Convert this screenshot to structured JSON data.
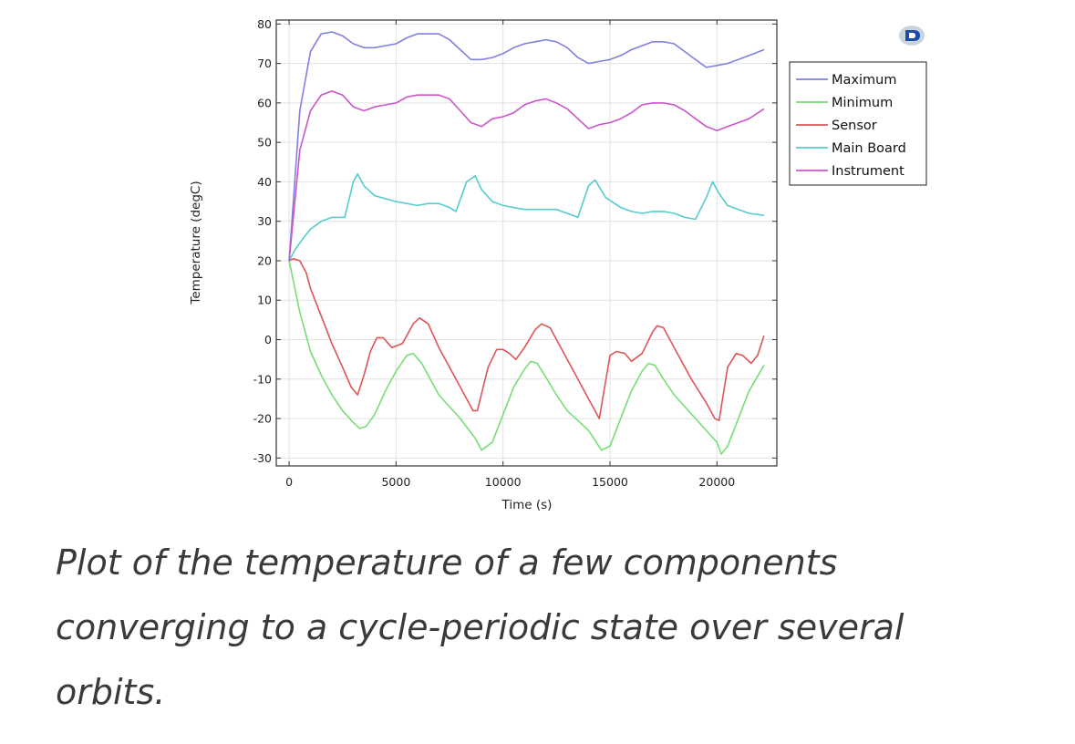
{
  "chart_data": {
    "type": "line",
    "xlabel": "Time (s)",
    "ylabel": "Temperature (degC)",
    "xlim": [
      -600,
      22800
    ],
    "ylim": [
      -32,
      81
    ],
    "xticks": [
      0,
      5000,
      10000,
      15000,
      20000
    ],
    "xtick_labels": [
      "0",
      "5000",
      "10000",
      "15000",
      "20000"
    ],
    "yticks": [
      -30,
      -20,
      -10,
      0,
      10,
      20,
      30,
      40,
      50,
      60,
      70,
      80
    ],
    "ytick_labels": [
      "-30",
      "-20",
      "-10",
      "0",
      "10",
      "20",
      "30",
      "40",
      "50",
      "60",
      "70",
      "80"
    ],
    "grid": true,
    "legend_position": "outside-right",
    "series": [
      {
        "name": "Maximum",
        "color": "#8080dd",
        "x": [
          0,
          500,
          1000,
          1500,
          2000,
          2500,
          3000,
          3500,
          4000,
          4500,
          5000,
          5500,
          6000,
          6500,
          7000,
          7500,
          8000,
          8500,
          9000,
          9500,
          10000,
          10500,
          11000,
          11500,
          12000,
          12500,
          13000,
          13500,
          14000,
          14500,
          15000,
          15500,
          16000,
          16500,
          17000,
          17500,
          18000,
          18500,
          19000,
          19500,
          20000,
          20500,
          21000,
          21500,
          22200
        ],
        "values": [
          20,
          58,
          73,
          77.5,
          78,
          77,
          75,
          74,
          74,
          74.5,
          75,
          76.5,
          77.5,
          77.5,
          77.5,
          76,
          73.5,
          71,
          71,
          71.5,
          72.5,
          74,
          75,
          75.5,
          76,
          75.5,
          74,
          71.5,
          70,
          70.5,
          71,
          72,
          73.5,
          74.5,
          75.5,
          75.5,
          75,
          73,
          71,
          69,
          69.5,
          70,
          71,
          72,
          73.5
        ]
      },
      {
        "name": "Minimum",
        "color": "#77dd77",
        "x": [
          0,
          500,
          1000,
          1500,
          2000,
          2500,
          3000,
          3300,
          3600,
          4000,
          4500,
          5000,
          5500,
          5800,
          6200,
          7000,
          8000,
          8700,
          9000,
          9500,
          10000,
          10500,
          11000,
          11300,
          11600,
          12000,
          12500,
          13000,
          14000,
          14600,
          15000,
          15500,
          16000,
          16500,
          16800,
          17100,
          17500,
          18000,
          19000,
          20000,
          20200,
          20500,
          21000,
          21500,
          22200
        ],
        "values": [
          20,
          7,
          -3,
          -9,
          -14,
          -18,
          -21,
          -22.5,
          -22,
          -19,
          -13,
          -8,
          -4,
          -3.5,
          -6,
          -14,
          -20,
          -25,
          -28,
          -26,
          -19,
          -12,
          -7.5,
          -5.5,
          -6,
          -9.5,
          -14,
          -18,
          -23,
          -28,
          -27,
          -20,
          -13,
          -8,
          -6,
          -6.5,
          -10,
          -14,
          -20,
          -26,
          -29,
          -27,
          -20,
          -13,
          -6.5
        ]
      },
      {
        "name": "Sensor",
        "color": "#dd5555",
        "x": [
          0,
          200,
          500,
          800,
          1000,
          1500,
          2000,
          2500,
          2900,
          3200,
          3500,
          3800,
          4100,
          4400,
          4800,
          5300,
          5800,
          6100,
          6500,
          7000,
          7500,
          8000,
          8600,
          8800,
          9300,
          9700,
          10000,
          10300,
          10600,
          11000,
          11500,
          11800,
          12200,
          12800,
          13500,
          14200,
          14500,
          15000,
          15300,
          15700,
          16000,
          16500,
          17000,
          17200,
          17500,
          18000,
          18800,
          19500,
          19900,
          20100,
          20500,
          20900,
          21200,
          21600,
          21900,
          22200
        ],
        "values": [
          20,
          20.5,
          20,
          17,
          13,
          6,
          -1,
          -7,
          -12,
          -14,
          -9,
          -3,
          0.5,
          0.5,
          -2,
          -1,
          4,
          5.5,
          4,
          -2,
          -7,
          -12,
          -18,
          -18,
          -7,
          -2.5,
          -2.5,
          -3.5,
          -5,
          -2,
          2.5,
          4,
          3,
          -3,
          -10,
          -17,
          -20,
          -4,
          -3,
          -3.5,
          -5.5,
          -3.5,
          2,
          3.5,
          3,
          -2,
          -10,
          -16,
          -20,
          -20.5,
          -7,
          -3.5,
          -4,
          -6,
          -4,
          1
        ]
      },
      {
        "name": "Main Board",
        "color": "#55cccc",
        "x": [
          0,
          300,
          700,
          1000,
          1500,
          2000,
          2300,
          2600,
          3000,
          3200,
          3500,
          4000,
          5000,
          5500,
          6000,
          6500,
          7000,
          7500,
          7800,
          8300,
          8700,
          9000,
          9500,
          10000,
          10500,
          11000,
          11500,
          12000,
          12500,
          13000,
          13500,
          14000,
          14300,
          14800,
          15500,
          16000,
          16500,
          17000,
          17500,
          18000,
          18500,
          19000,
          19500,
          19800,
          20100,
          20500,
          21000,
          21500,
          22200
        ],
        "values": [
          20,
          23,
          26,
          28,
          30,
          31,
          31,
          31,
          40,
          42,
          39,
          36.5,
          35,
          34.5,
          34,
          34.5,
          34.5,
          33.5,
          32.5,
          40,
          41.5,
          38,
          35,
          34,
          33.5,
          33,
          33,
          33,
          33,
          32,
          31,
          39,
          40.5,
          36,
          33.5,
          32.5,
          32,
          32.5,
          32.5,
          32,
          31,
          30.5,
          36,
          40,
          37,
          34,
          33,
          32,
          31.5
        ]
      },
      {
        "name": "Instrument",
        "color": "#cc55cc",
        "x": [
          0,
          500,
          1000,
          1500,
          2000,
          2500,
          3000,
          3500,
          4000,
          4500,
          5000,
          5500,
          6000,
          6500,
          7000,
          7500,
          8000,
          8500,
          9000,
          9500,
          10000,
          10500,
          11000,
          11500,
          12000,
          12500,
          13000,
          13500,
          14000,
          14500,
          15000,
          15500,
          16000,
          16500,
          17000,
          17500,
          18000,
          18500,
          19000,
          19500,
          20000,
          20500,
          21000,
          21500,
          22200
        ],
        "values": [
          20,
          48,
          58,
          62,
          63,
          62,
          59,
          58,
          59,
          59.5,
          60,
          61.5,
          62,
          62,
          62,
          61,
          58,
          55,
          54,
          56,
          56.5,
          57.5,
          59.5,
          60.5,
          61,
          60,
          58.5,
          56,
          53.5,
          54.5,
          55,
          56,
          57.5,
          59.5,
          60,
          60,
          59.5,
          58,
          56,
          54,
          53,
          54,
          55,
          56,
          58.5
        ]
      }
    ]
  },
  "caption": "Plot of the temperature of a few components converging to a cycle-periodic state over several orbits."
}
